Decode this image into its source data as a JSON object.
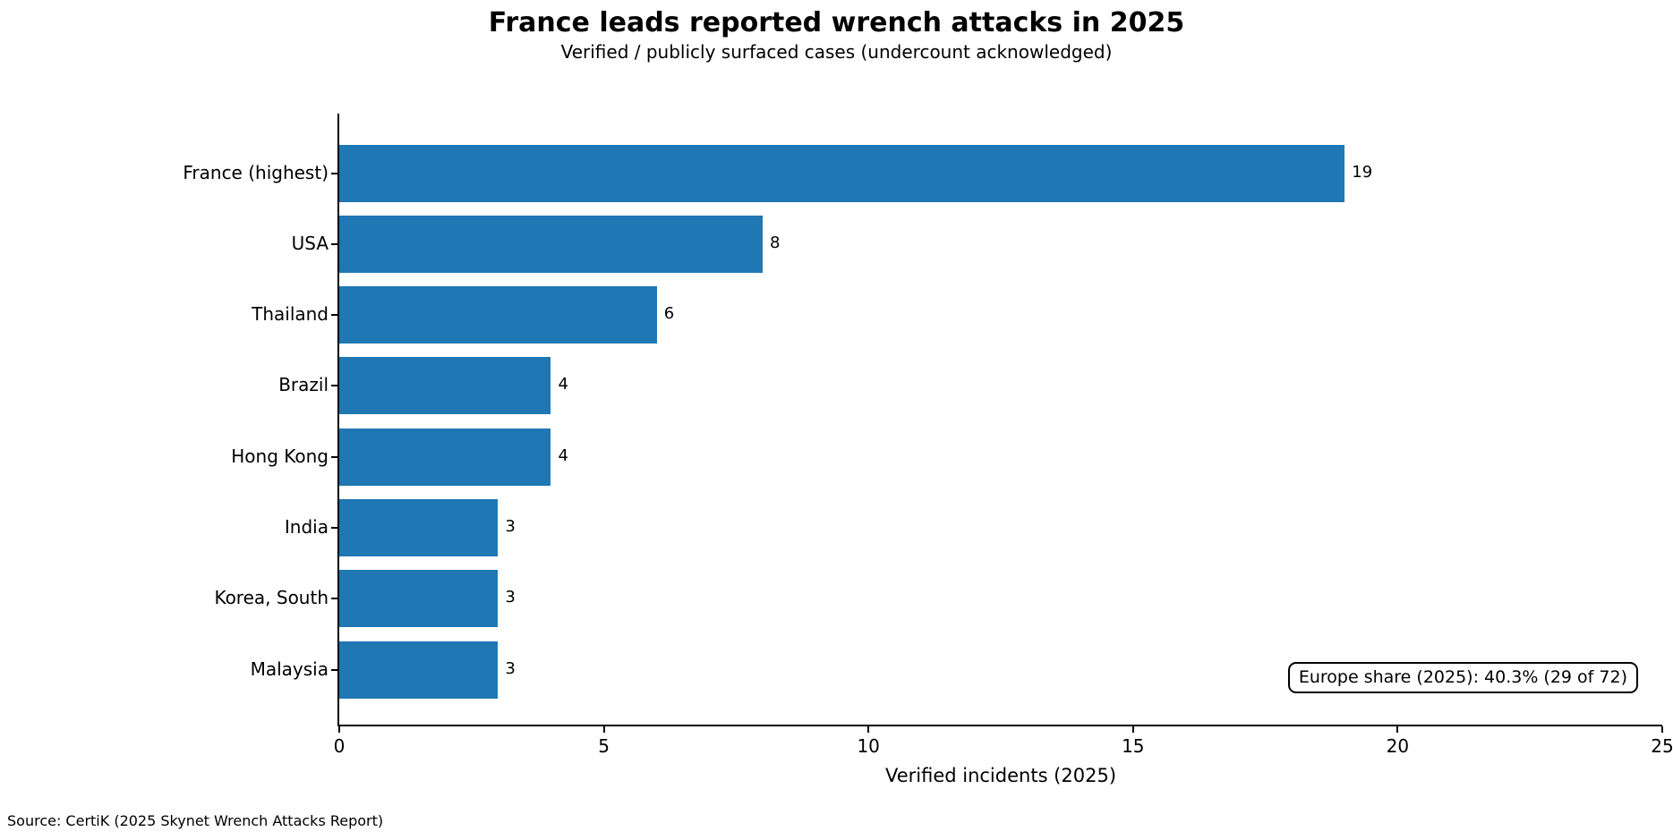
{
  "chart_data": {
    "type": "bar",
    "orientation": "horizontal",
    "title": "France leads reported wrench attacks in 2025",
    "subtitle": "Verified / publicly surfaced cases (undercount acknowledged)",
    "xlabel": "Verified incidents (2025)",
    "ylabel": "",
    "categories": [
      "France (highest)",
      "USA",
      "Thailand",
      "Brazil",
      "Hong Kong",
      "India",
      "Korea, South",
      "Malaysia"
    ],
    "values": [
      19,
      8,
      6,
      4,
      4,
      3,
      3,
      3
    ],
    "value_labels": [
      "19",
      "8",
      "6",
      "4",
      "4",
      "3",
      "3",
      "3"
    ],
    "xlim": [
      0,
      25
    ],
    "xticks": [
      0,
      5,
      10,
      15,
      20,
      25
    ],
    "grid": false,
    "legend": "none",
    "bar_color": "#1f77b4",
    "annotation": "Europe share (2025): 40.3% (29 of 72)",
    "source": "Source: CertiK (2025 Skynet Wrench Attacks Report)"
  }
}
